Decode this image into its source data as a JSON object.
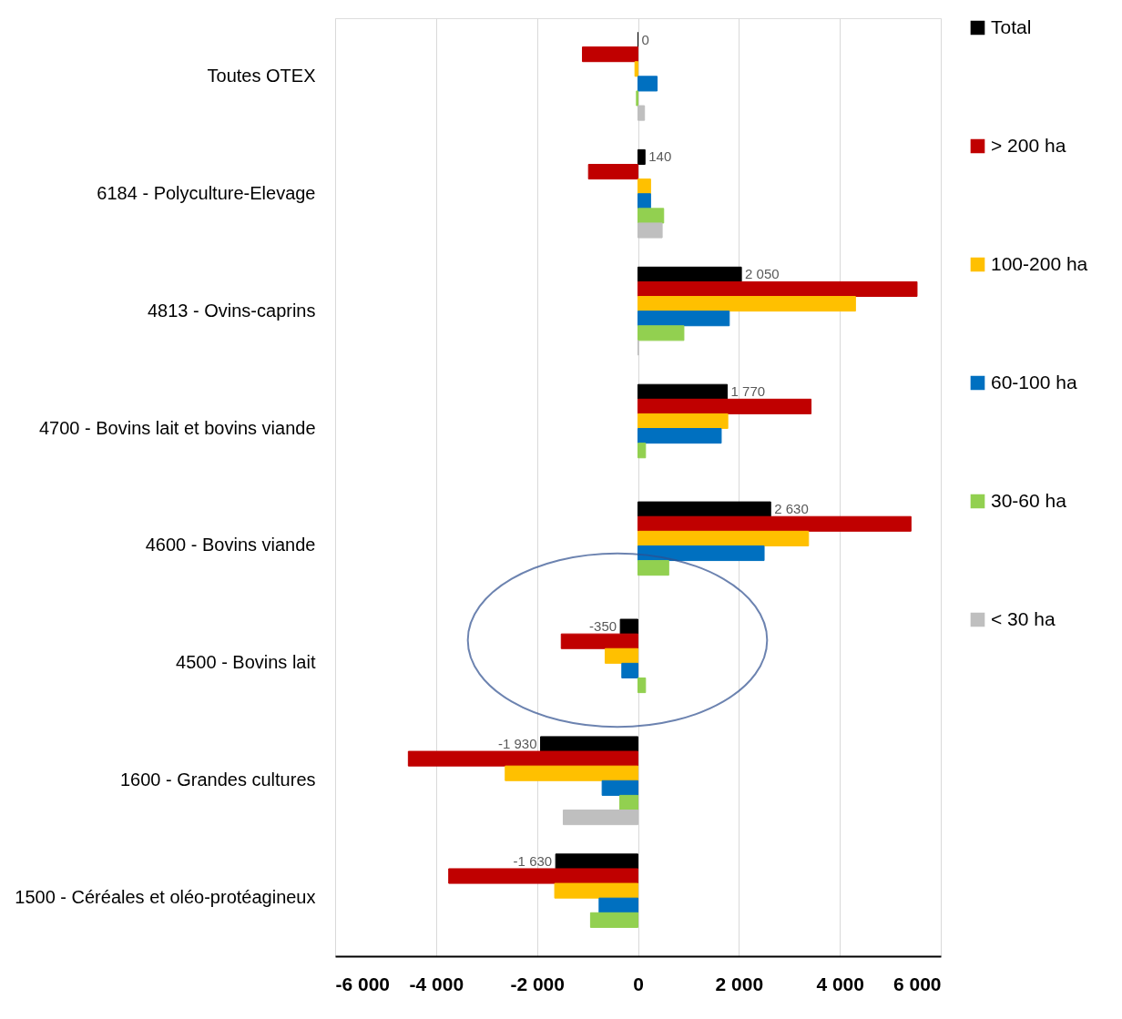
{
  "chart_data": {
    "type": "bar",
    "orientation": "horizontal",
    "categories": [
      "Toutes OTEX",
      "6184 - Polyculture-Elevage",
      "4813 - Ovins-caprins",
      "4700 - Bovins lait et bovins viande",
      "4600 - Bovins viande",
      "4500 - Bovins lait",
      "1600 - Grandes cultures",
      "1500 - Céréales et oléo-protéagineux"
    ],
    "series": [
      {
        "name": "Total",
        "color": "#000000",
        "values": [
          0,
          140,
          2050,
          1770,
          2630,
          -350,
          -1930,
          -1630
        ],
        "value_labels": [
          "0",
          "140",
          "2 050",
          "1 770",
          "2 630",
          "-350",
          "-1 930",
          "-1 630"
        ]
      },
      {
        "name": "> 200 ha",
        "color": "#c00000",
        "values": [
          -1100,
          -980,
          5530,
          3430,
          5410,
          -1520,
          -4550,
          -3750
        ]
      },
      {
        "name": "100-200 ha",
        "color": "#ffc000",
        "values": [
          -60,
          250,
          4310,
          1780,
          3380,
          -650,
          -2630,
          -1650
        ]
      },
      {
        "name": "60-100 ha",
        "color": "#0070c0",
        "values": [
          380,
          250,
          1810,
          1650,
          2500,
          -320,
          -710,
          -770
        ]
      },
      {
        "name": "30-60 ha",
        "color": "#92d050",
        "values": [
          -30,
          510,
          910,
          150,
          610,
          150,
          -360,
          -940
        ]
      },
      {
        "name": "< 30 ha",
        "color": "#bfbfbf",
        "values": [
          130,
          480,
          10,
          null,
          null,
          null,
          -1480,
          null
        ]
      }
    ],
    "xlim": [
      -6000,
      6000
    ],
    "xticks": [
      {
        "value": -6000,
        "label": "-6 000"
      },
      {
        "value": -4000,
        "label": "-4 000"
      },
      {
        "value": -2000,
        "label": "-2 000"
      },
      0,
      {
        "value": 2000,
        "label": "2 000"
      },
      {
        "value": 4000,
        "label": "4 000"
      },
      {
        "value": 6000,
        "label": "6 000"
      }
    ],
    "grid": "x",
    "legend": "right"
  }
}
